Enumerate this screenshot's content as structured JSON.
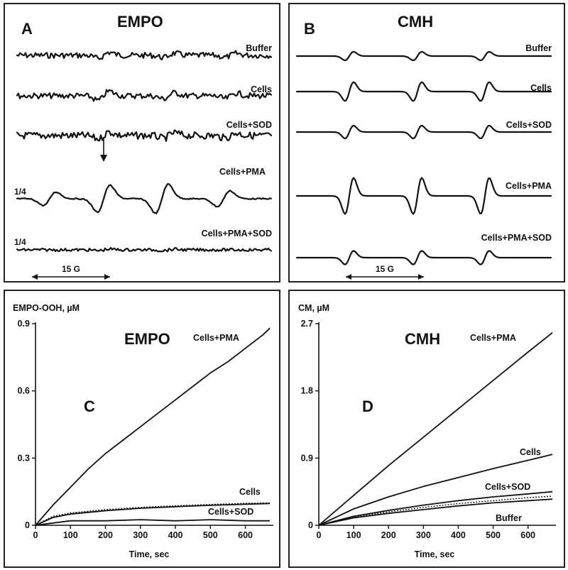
{
  "panels": {
    "A": {
      "letter": "A",
      "title": "EMPO",
      "traces": [
        {
          "label": "Buffer",
          "scale": ""
        },
        {
          "label": "Cells",
          "scale": ""
        },
        {
          "label": "Cells+SOD",
          "scale": ""
        },
        {
          "label": "Cells+PMA",
          "scale": "1/4"
        },
        {
          "label": "Cells+PMA+SOD",
          "scale": "1/4"
        }
      ],
      "scalebar": "15 G"
    },
    "B": {
      "letter": "B",
      "title": "CMH",
      "traces": [
        {
          "label": "Buffer"
        },
        {
          "label": "Cells"
        },
        {
          "label": "Cells+SOD"
        },
        {
          "label": "Cells+PMA"
        },
        {
          "label": "Cells+PMA+SOD"
        }
      ],
      "scalebar": "15 G"
    }
  },
  "chart_data": [
    {
      "panel": "C",
      "type": "line",
      "title": "EMPO",
      "ylabel": "EMPO-OOH, µM",
      "xlabel": "Time, sec",
      "xlim": [
        0,
        680
      ],
      "ylim": [
        0,
        0.9
      ],
      "xticks": [
        0,
        100,
        200,
        300,
        400,
        500,
        600
      ],
      "yticks": [
        "0",
        "0.3",
        "0.6",
        "0.9"
      ],
      "series": [
        {
          "name": "Cells+PMA",
          "style": "solid",
          "x": [
            0,
            50,
            100,
            150,
            200,
            250,
            300,
            350,
            400,
            450,
            500,
            550,
            600,
            650,
            670
          ],
          "y": [
            0,
            0.09,
            0.17,
            0.25,
            0.32,
            0.38,
            0.44,
            0.5,
            0.56,
            0.62,
            0.68,
            0.73,
            0.79,
            0.85,
            0.88
          ]
        },
        {
          "name": "Cells",
          "style": "dotted",
          "x": [
            0,
            50,
            100,
            200,
            300,
            400,
            500,
            600,
            670
          ],
          "y": [
            0,
            0.04,
            0.055,
            0.07,
            0.08,
            0.087,
            0.093,
            0.098,
            0.1
          ]
        },
        {
          "name": "",
          "style": "solid",
          "x": [
            0,
            50,
            100,
            200,
            300,
            400,
            500,
            600,
            670
          ],
          "y": [
            0,
            0.035,
            0.05,
            0.065,
            0.076,
            0.083,
            0.089,
            0.094,
            0.097
          ]
        },
        {
          "name": "Cells+SOD",
          "style": "solid",
          "x": [
            0,
            50,
            100,
            200,
            300,
            400,
            500,
            600,
            670
          ],
          "y": [
            0,
            0.01,
            0.02,
            0.02,
            0.025,
            0.02,
            0.025,
            0.02,
            0.02
          ]
        }
      ]
    },
    {
      "panel": "D",
      "type": "line",
      "title": "CMH",
      "ylabel": "CM, µM",
      "xlabel": "Time, sec",
      "xlim": [
        0,
        680
      ],
      "ylim": [
        0,
        2.7
      ],
      "xticks": [
        0,
        100,
        200,
        300,
        400,
        500,
        600
      ],
      "yticks": [
        "0",
        "0.9",
        "1.8",
        "2.7"
      ],
      "series": [
        {
          "name": "Cells+PMA",
          "style": "solid",
          "x": [
            0,
            100,
            200,
            300,
            400,
            500,
            600,
            670
          ],
          "y": [
            0,
            0.4,
            0.8,
            1.18,
            1.56,
            1.94,
            2.32,
            2.58
          ]
        },
        {
          "name": "Cells",
          "style": "solid",
          "x": [
            0,
            100,
            200,
            300,
            400,
            500,
            600,
            670
          ],
          "y": [
            0,
            0.22,
            0.38,
            0.52,
            0.64,
            0.76,
            0.87,
            0.95
          ]
        },
        {
          "name": "Cells+SOD",
          "style": "solid",
          "x": [
            0,
            100,
            200,
            300,
            400,
            500,
            600,
            670
          ],
          "y": [
            0,
            0.12,
            0.2,
            0.27,
            0.33,
            0.38,
            0.42,
            0.45
          ]
        },
        {
          "name": "",
          "style": "dotted",
          "x": [
            0,
            100,
            200,
            300,
            400,
            500,
            600,
            670
          ],
          "y": [
            0,
            0.11,
            0.18,
            0.24,
            0.29,
            0.33,
            0.37,
            0.39
          ]
        },
        {
          "name": "Buffer",
          "style": "solid",
          "x": [
            0,
            100,
            200,
            300,
            400,
            500,
            600,
            670
          ],
          "y": [
            0,
            0.1,
            0.16,
            0.21,
            0.26,
            0.3,
            0.33,
            0.35
          ]
        }
      ]
    }
  ]
}
